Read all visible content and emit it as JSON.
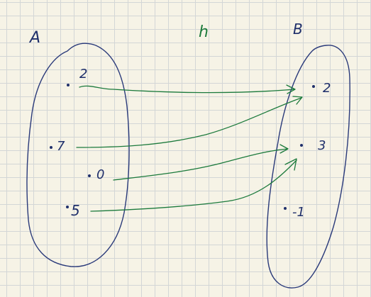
{
  "sets": {
    "domain": {
      "label": "A",
      "elements": [
        "2",
        "7",
        "0",
        "5"
      ]
    },
    "codomain": {
      "label": "B",
      "elements": [
        "2",
        "3",
        "-1"
      ]
    }
  },
  "function_label": "h",
  "mappings": [
    {
      "from": "2",
      "to": "2"
    },
    {
      "from": "7",
      "to": "2"
    },
    {
      "from": "0",
      "to": "3"
    },
    {
      "from": "5",
      "to": "3"
    }
  ],
  "colors": {
    "paper": "#f6f3e6",
    "grid": "#d3d6d6",
    "ink": "#1f2f6b",
    "arrows": "#1c7a3c"
  }
}
